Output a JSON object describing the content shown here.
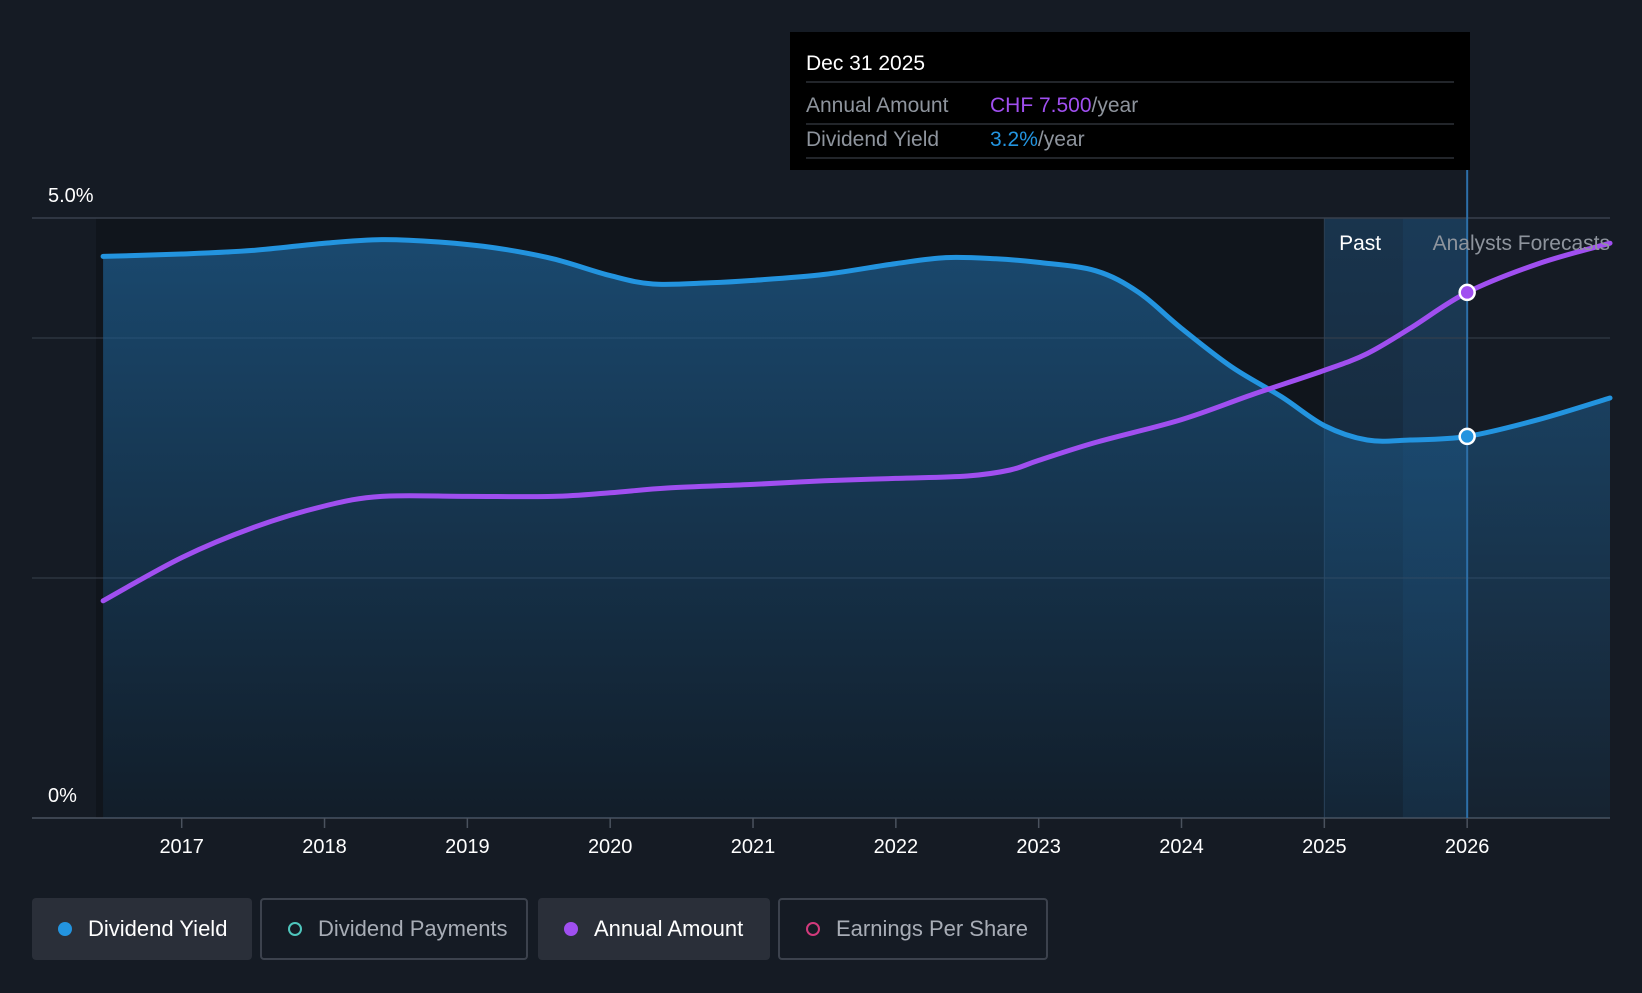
{
  "colors": {
    "background": "#151b24",
    "yield": "#2394df",
    "annual": "#a04ff0",
    "payments": "#4fc6bd",
    "eps": "#d23a7c",
    "tooltip_bg": "#000000"
  },
  "chart_data": {
    "type": "line",
    "y_tick_labels": [
      "5.0%",
      "0%"
    ],
    "x_tick_labels": [
      "2017",
      "2018",
      "2019",
      "2020",
      "2021",
      "2022",
      "2023",
      "2024",
      "2025",
      "2026"
    ],
    "x_range": [
      2016.4,
      2027.0
    ],
    "y_range": [
      0,
      5.0
    ],
    "grid": true,
    "past_label": "Past",
    "forecast_label": "Analysts Forecasts",
    "past_end": 2025.0,
    "forecast_start": 2025.55,
    "highlight_x": 2026.0,
    "series": [
      {
        "name": "Dividend Yield",
        "key": "yield",
        "area": true,
        "values": [
          [
            2016.45,
            4.68
          ],
          [
            2017.0,
            4.7
          ],
          [
            2017.5,
            4.73
          ],
          [
            2018.0,
            4.79
          ],
          [
            2018.4,
            4.82
          ],
          [
            2018.8,
            4.8
          ],
          [
            2019.2,
            4.75
          ],
          [
            2019.6,
            4.66
          ],
          [
            2020.0,
            4.52
          ],
          [
            2020.3,
            4.45
          ],
          [
            2020.7,
            4.46
          ],
          [
            2021.0,
            4.48
          ],
          [
            2021.5,
            4.53
          ],
          [
            2022.0,
            4.62
          ],
          [
            2022.35,
            4.67
          ],
          [
            2022.7,
            4.66
          ],
          [
            2023.0,
            4.63
          ],
          [
            2023.4,
            4.56
          ],
          [
            2023.7,
            4.38
          ],
          [
            2024.0,
            4.08
          ],
          [
            2024.35,
            3.76
          ],
          [
            2024.7,
            3.51
          ],
          [
            2025.0,
            3.27
          ],
          [
            2025.3,
            3.15
          ],
          [
            2025.6,
            3.15
          ],
          [
            2026.0,
            3.18
          ],
          [
            2026.5,
            3.32
          ],
          [
            2027.0,
            3.5
          ]
        ]
      },
      {
        "name": "Annual Amount",
        "key": "annual",
        "area": false,
        "values": [
          [
            2016.45,
            1.81
          ],
          [
            2017.0,
            2.17
          ],
          [
            2017.5,
            2.42
          ],
          [
            2018.0,
            2.6
          ],
          [
            2018.4,
            2.68
          ],
          [
            2019.0,
            2.68
          ],
          [
            2019.6,
            2.68
          ],
          [
            2020.0,
            2.71
          ],
          [
            2020.4,
            2.75
          ],
          [
            2021.0,
            2.78
          ],
          [
            2021.5,
            2.81
          ],
          [
            2022.0,
            2.83
          ],
          [
            2022.5,
            2.85
          ],
          [
            2022.8,
            2.9
          ],
          [
            2023.0,
            2.98
          ],
          [
            2023.4,
            3.13
          ],
          [
            2024.0,
            3.32
          ],
          [
            2024.5,
            3.53
          ],
          [
            2025.0,
            3.73
          ],
          [
            2025.3,
            3.87
          ],
          [
            2025.6,
            4.08
          ],
          [
            2026.0,
            4.38
          ],
          [
            2026.5,
            4.62
          ],
          [
            2027.0,
            4.79
          ]
        ]
      }
    ],
    "tooltip": {
      "date": "Dec 31 2025",
      "rows": [
        {
          "label": "Annual Amount",
          "value": "CHF 7.500",
          "unit": "/year",
          "key": "annual"
        },
        {
          "label": "Dividend Yield",
          "value": "3.2%",
          "unit": "/year",
          "key": "yield"
        }
      ]
    }
  },
  "legend": [
    {
      "label": "Dividend Yield",
      "key": "yield",
      "active": true
    },
    {
      "label": "Dividend Payments",
      "key": "payments",
      "active": false
    },
    {
      "label": "Annual Amount",
      "key": "annual",
      "active": true
    },
    {
      "label": "Earnings Per Share",
      "key": "eps",
      "active": false
    }
  ]
}
